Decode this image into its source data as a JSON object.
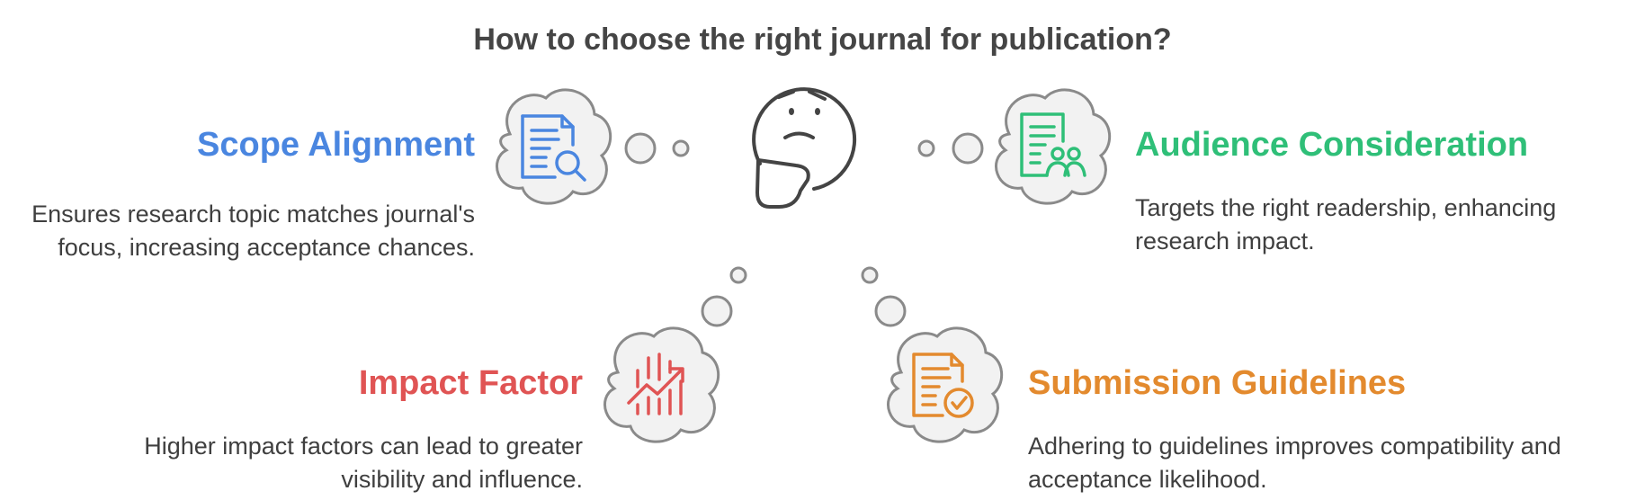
{
  "title": "How to choose the right journal for publication?",
  "items": [
    {
      "heading": "Scope Alignment",
      "description": "Ensures research topic matches journal's focus, increasing acceptance chances.",
      "color": "#4a86e0",
      "icon": "document-search-icon"
    },
    {
      "heading": "Audience Consideration",
      "description": "Targets the right readership, enhancing research impact.",
      "color": "#2fbf78",
      "icon": "document-people-icon"
    },
    {
      "heading": "Impact Factor",
      "description": "Higher impact factors can lead to greater visibility and influence.",
      "color": "#e05454",
      "icon": "trend-chart-icon"
    },
    {
      "heading": "Submission Guidelines",
      "description": "Adhering to guidelines improves compatibility and acceptance likelihood.",
      "color": "#e38a2e",
      "icon": "document-check-icon"
    }
  ],
  "center_icon": "thinking-face-icon",
  "colors": {
    "text": "#3f3f3f",
    "title": "#454545",
    "cloud_fill": "#f2f2f2",
    "cloud_stroke": "#8a8a8a"
  }
}
